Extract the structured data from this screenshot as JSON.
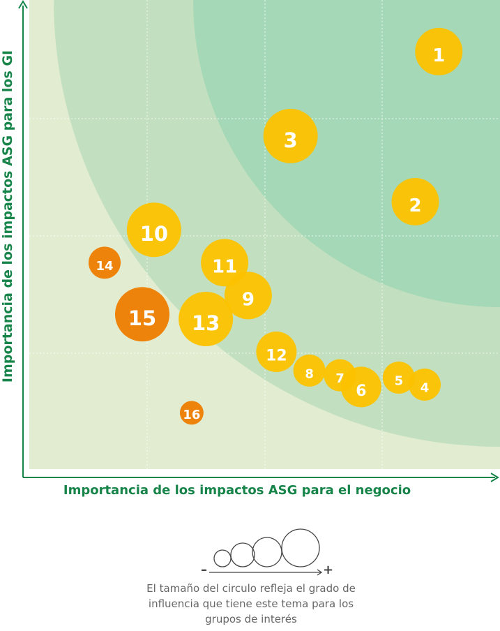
{
  "chart_data": {
    "type": "scatter",
    "xlabel": "Importancia de los impactos ASG para el negocio",
    "ylabel": "Importancia de los impactos ASG para los GI",
    "grid": true,
    "points": [
      {
        "label": "1",
        "x": 0.87,
        "y": 0.89,
        "size": 3,
        "color": "#fcc200"
      },
      {
        "label": "2",
        "x": 0.82,
        "y": 0.57,
        "size": 3,
        "color": "#fcc200"
      },
      {
        "label": "3",
        "x": 0.555,
        "y": 0.71,
        "size": 4,
        "color": "#fcc200"
      },
      {
        "label": "4",
        "x": 0.84,
        "y": 0.18,
        "size": 1,
        "color": "#fcc200"
      },
      {
        "label": "5",
        "x": 0.785,
        "y": 0.195,
        "size": 1,
        "color": "#fcc200"
      },
      {
        "label": "6",
        "x": 0.705,
        "y": 0.175,
        "size": 2,
        "color": "#fcc200"
      },
      {
        "label": "7",
        "x": 0.66,
        "y": 0.2,
        "size": 1,
        "color": "#fcc200"
      },
      {
        "label": "8",
        "x": 0.595,
        "y": 0.21,
        "size": 1,
        "color": "#fcc200"
      },
      {
        "label": "9",
        "x": 0.465,
        "y": 0.37,
        "size": 3,
        "color": "#fcc200"
      },
      {
        "label": "10",
        "x": 0.265,
        "y": 0.51,
        "size": 4,
        "color": "#fcc200"
      },
      {
        "label": "11",
        "x": 0.415,
        "y": 0.44,
        "size": 3,
        "color": "#fcc200"
      },
      {
        "label": "12",
        "x": 0.525,
        "y": 0.25,
        "size": 2,
        "color": "#fcc200"
      },
      {
        "label": "13",
        "x": 0.375,
        "y": 0.32,
        "size": 4,
        "color": "#fcc200"
      },
      {
        "label": "14",
        "x": 0.16,
        "y": 0.44,
        "size": 1,
        "color": "#ee7d00"
      },
      {
        "label": "15",
        "x": 0.24,
        "y": 0.33,
        "size": 4,
        "color": "#ee7d00"
      },
      {
        "label": "16",
        "x": 0.345,
        "y": 0.12,
        "size": 0,
        "color": "#ee7d00"
      }
    ]
  },
  "legend": {
    "minus": "–",
    "plus": "+",
    "caption_lines": [
      "El tamaño del circulo refleja el grado de",
      "influencia que tiene este tema para los",
      "grupos de interés"
    ]
  },
  "colors": {
    "zone_outer": "#e2ecd0",
    "zone_middle": "#c2e0bf",
    "zone_inner": "#a5d8b6",
    "axis": "#17844a"
  }
}
